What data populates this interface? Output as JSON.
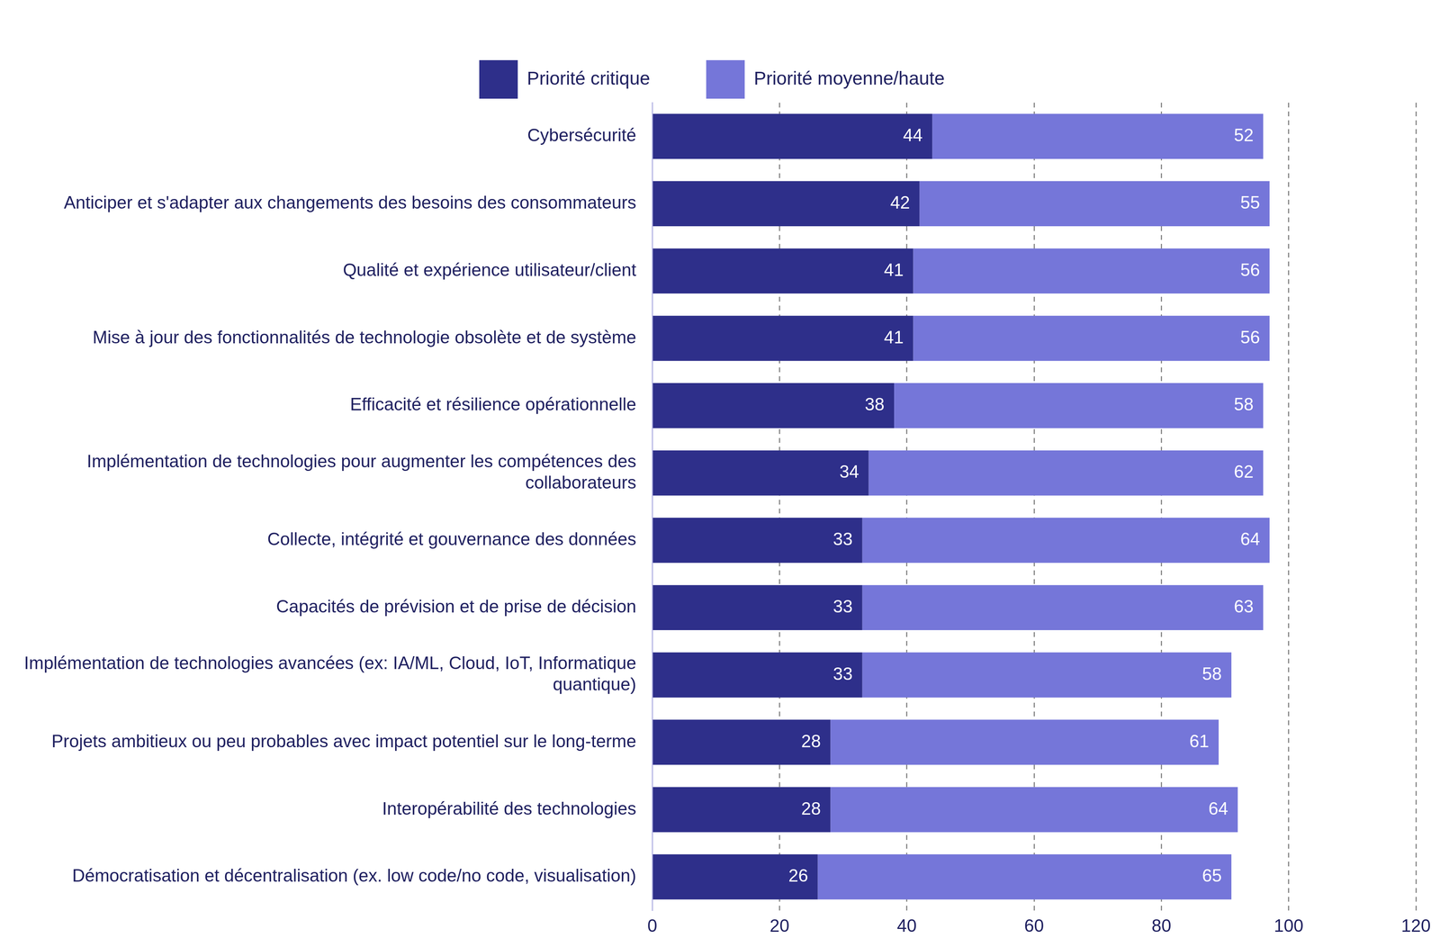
{
  "chart_data": {
    "type": "bar",
    "orientation": "horizontal",
    "stacked": true,
    "data_labels": true,
    "legend": "top",
    "grid": true,
    "categories": [
      "Cybersécurité",
      "Anticiper et s'adapter aux changements des besoins des consommateurs",
      "Qualité et expérience utilisateur/client",
      "Mise à jour des fonctionnalités de technologie obsolète et de système",
      "Efficacité et résilience opérationnelle",
      "Implémentation de technologies pour augmenter les compétences des collaborateurs",
      "Collecte, intégrité et gouvernance des données",
      "Capacités de prévision et de prise de décision",
      "Implémentation de technologies avancées (ex: IA/ML, Cloud, IoT, Informatique quantique)",
      "Projets ambitieux ou peu probables avec impact potentiel sur le long-terme",
      "Interopérabilité des technologies",
      "Démocratisation et décentralisation (ex. low code/no code, visualisation)"
    ],
    "series": [
      {
        "name": "Priorité critique",
        "color": "#2e2f8a",
        "values": [
          44,
          42,
          41,
          41,
          38,
          34,
          33,
          33,
          33,
          28,
          28,
          26
        ]
      },
      {
        "name": "Priorité moyenne/haute",
        "color": "#7576d9",
        "values": [
          52,
          55,
          56,
          56,
          58,
          62,
          64,
          63,
          58,
          61,
          64,
          65
        ]
      }
    ],
    "xlim": [
      0,
      120
    ],
    "xticks": [
      0,
      20,
      40,
      60,
      80,
      100,
      120
    ]
  }
}
